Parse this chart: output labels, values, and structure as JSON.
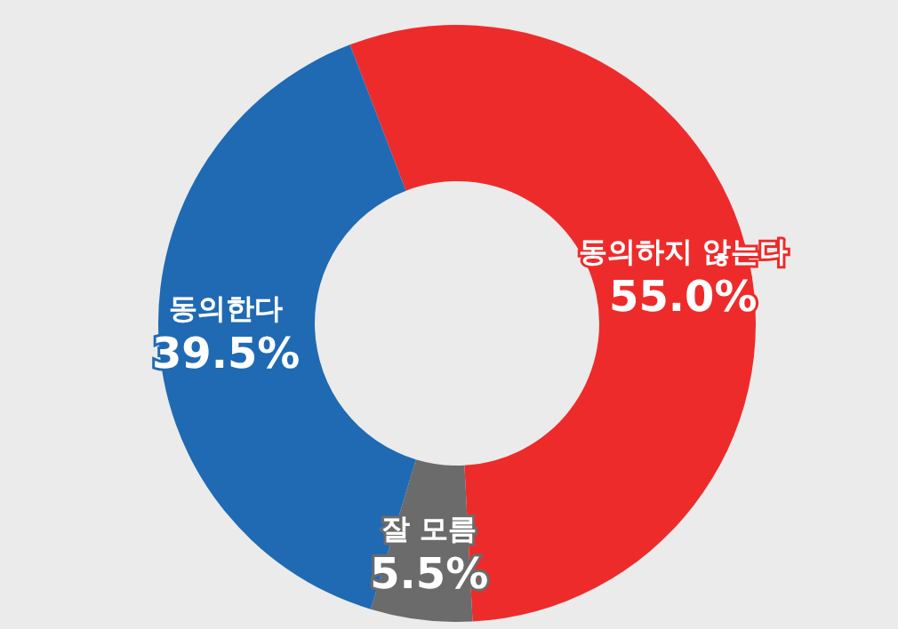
{
  "chart_data": {
    "type": "donut",
    "categories": [
      "동의하지 않는다",
      "잘 모름",
      "동의한다"
    ],
    "values": [
      55.0,
      5.5,
      39.5
    ],
    "colors": [
      "#ee2b2b",
      "#6b6b6b",
      "#1f6ab3"
    ],
    "value_labels": [
      "55.0%",
      "5.5%",
      "39.5%"
    ]
  }
}
